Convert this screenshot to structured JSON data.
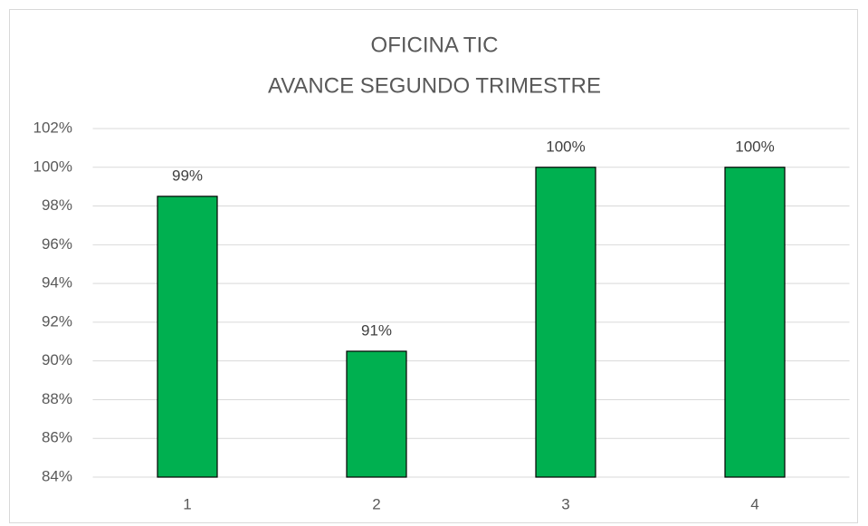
{
  "chart_data": {
    "type": "bar",
    "title": "OFICINA TIC",
    "subtitle": "AVANCE SEGUNDO TRIMESTRE",
    "categories": [
      "1",
      "2",
      "3",
      "4"
    ],
    "values": [
      98.5,
      90.5,
      100,
      100
    ],
    "value_labels": [
      "99%",
      "91%",
      "100%",
      "100%"
    ],
    "color": "#00b050",
    "ylim": [
      84,
      102
    ],
    "yticks": [
      {
        "value": 84,
        "label": "84%"
      },
      {
        "value": 86,
        "label": "86%"
      },
      {
        "value": 88,
        "label": "88%"
      },
      {
        "value": 90,
        "label": "90%"
      },
      {
        "value": 92,
        "label": "92%"
      },
      {
        "value": 94,
        "label": "94%"
      },
      {
        "value": 96,
        "label": "96%"
      },
      {
        "value": 98,
        "label": "98%"
      },
      {
        "value": 100,
        "label": "100%"
      },
      {
        "value": 102,
        "label": "102%"
      }
    ],
    "grid": true
  }
}
